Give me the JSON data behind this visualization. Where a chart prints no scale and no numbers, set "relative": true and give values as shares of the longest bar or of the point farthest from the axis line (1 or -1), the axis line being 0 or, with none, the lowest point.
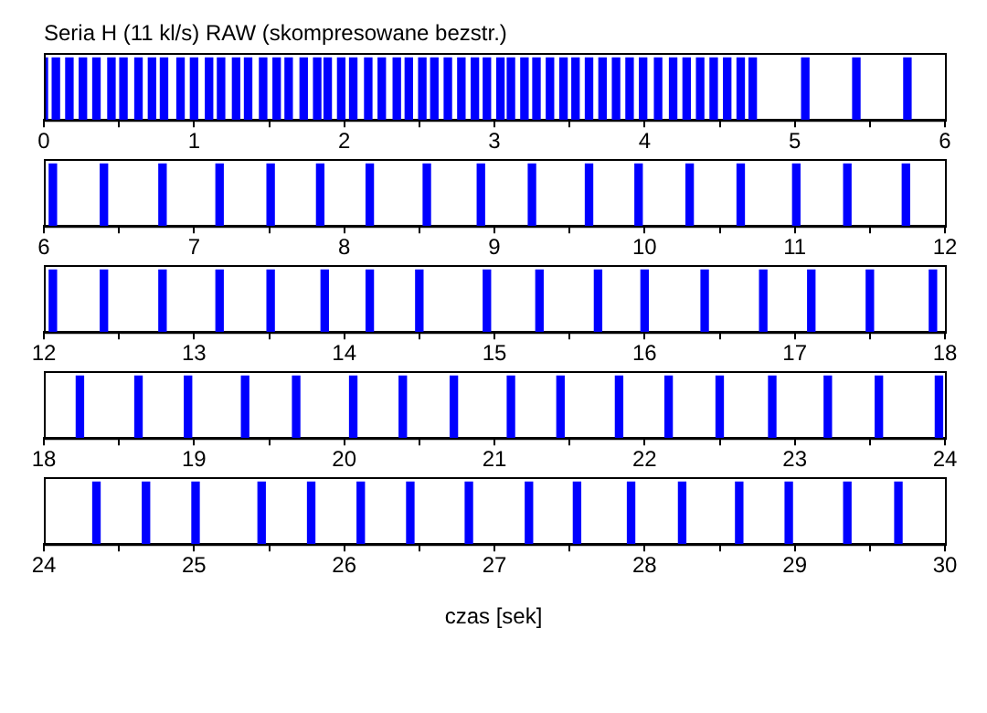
{
  "chart_data": [
    {
      "type": "bar",
      "title": "Seria H (11 kl/s) RAW (skompresowane bezstr.)",
      "relative": true,
      "color": "#0000ff",
      "xlim": [
        0,
        6
      ],
      "xticks": [
        0,
        {
          "value": 0.5,
          "label": null
        },
        1,
        {
          "value": 1.5,
          "label": null
        },
        2,
        {
          "value": 2.5,
          "label": null
        },
        3,
        {
          "value": 3.5,
          "label": null
        },
        4,
        {
          "value": 4.5,
          "label": null
        },
        5,
        {
          "value": 5.5,
          "label": null
        },
        6
      ],
      "x": [
        0.0,
        0.08,
        0.17,
        0.26,
        0.35,
        0.45,
        0.53,
        0.63,
        0.72,
        0.8,
        0.91,
        1.0,
        1.1,
        1.18,
        1.28,
        1.36,
        1.46,
        1.55,
        1.63,
        1.73,
        1.82,
        1.89,
        1.98,
        2.06,
        2.16,
        2.25,
        2.35,
        2.43,
        2.52,
        2.6,
        2.69,
        2.78,
        2.87,
        2.95,
        3.04,
        3.11,
        3.2,
        3.28,
        3.37,
        3.46,
        3.54,
        3.63,
        3.72,
        3.81,
        3.9,
        3.99,
        4.09,
        4.19,
        4.28,
        4.37,
        4.46,
        4.55,
        4.64,
        4.72,
        5.07,
        5.41,
        5.75
      ],
      "values": [
        1,
        1,
        1,
        1,
        1,
        1,
        1,
        1,
        1,
        1,
        1,
        1,
        1,
        1,
        1,
        1,
        1,
        1,
        1,
        1,
        1,
        1,
        1,
        1,
        1,
        1,
        1,
        1,
        1,
        1,
        1,
        1,
        1,
        1,
        1,
        1,
        1,
        1,
        1,
        1,
        1,
        1,
        1,
        1,
        1,
        1,
        1,
        1,
        1,
        1,
        1,
        1,
        1,
        1,
        1,
        1,
        1
      ]
    },
    {
      "type": "bar",
      "relative": true,
      "color": "#0000ff",
      "xlim": [
        6,
        12
      ],
      "xticks": [
        6,
        {
          "value": 6.5,
          "label": null
        },
        7,
        {
          "value": 7.5,
          "label": null
        },
        8,
        {
          "value": 8.5,
          "label": null
        },
        9,
        {
          "value": 9.5,
          "label": null
        },
        10,
        {
          "value": 10.5,
          "label": null
        },
        11,
        {
          "value": 11.5,
          "label": null
        },
        12
      ],
      "x": [
        6.06,
        6.4,
        6.79,
        7.17,
        7.51,
        7.84,
        8.17,
        8.55,
        8.91,
        9.25,
        9.63,
        9.96,
        10.3,
        10.64,
        11.01,
        11.35,
        11.74
      ],
      "values": [
        1,
        1,
        1,
        1,
        1,
        1,
        1,
        1,
        1,
        1,
        1,
        1,
        1,
        1,
        1,
        1,
        1
      ]
    },
    {
      "type": "bar",
      "relative": true,
      "color": "#0000ff",
      "xlim": [
        12,
        18
      ],
      "xticks": [
        12,
        {
          "value": 12.5,
          "label": null
        },
        13,
        {
          "value": 13.5,
          "label": null
        },
        14,
        {
          "value": 14.5,
          "label": null
        },
        15,
        {
          "value": 15.5,
          "label": null
        },
        16,
        {
          "value": 16.5,
          "label": null
        },
        17,
        {
          "value": 17.5,
          "label": null
        },
        18
      ],
      "x": [
        12.06,
        12.4,
        12.79,
        13.17,
        13.51,
        13.87,
        14.17,
        14.5,
        14.95,
        15.3,
        15.69,
        16.0,
        16.4,
        16.79,
        17.11,
        17.5,
        17.92
      ],
      "values": [
        1,
        1,
        1,
        1,
        1,
        1,
        1,
        1,
        1,
        1,
        1,
        1,
        1,
        1,
        1,
        1,
        1
      ]
    },
    {
      "type": "bar",
      "relative": true,
      "color": "#0000ff",
      "xlim": [
        18,
        24
      ],
      "xticks": [
        18,
        {
          "value": 18.5,
          "label": null
        },
        19,
        {
          "value": 19.5,
          "label": null
        },
        20,
        {
          "value": 20.5,
          "label": null
        },
        21,
        {
          "value": 21.5,
          "label": null
        },
        22,
        {
          "value": 22.5,
          "label": null
        },
        23,
        {
          "value": 23.5,
          "label": null
        },
        24
      ],
      "x": [
        18.24,
        18.63,
        18.96,
        19.34,
        19.68,
        20.06,
        20.39,
        20.73,
        21.11,
        21.44,
        21.83,
        22.16,
        22.5,
        22.85,
        23.22,
        23.56,
        23.96
      ],
      "values": [
        1,
        1,
        1,
        1,
        1,
        1,
        1,
        1,
        1,
        1,
        1,
        1,
        1,
        1,
        1,
        1,
        1
      ]
    },
    {
      "type": "bar",
      "xlabel": "czas [sek]",
      "relative": true,
      "color": "#0000ff",
      "xlim": [
        24,
        30
      ],
      "xticks": [
        24,
        {
          "value": 24.5,
          "label": null
        },
        25,
        {
          "value": 25.5,
          "label": null
        },
        26,
        {
          "value": 26.5,
          "label": null
        },
        27,
        {
          "value": 27.5,
          "label": null
        },
        28,
        {
          "value": 28.5,
          "label": null
        },
        29,
        {
          "value": 29.5,
          "label": null
        },
        30
      ],
      "x": [
        24.35,
        24.68,
        25.01,
        25.45,
        25.78,
        26.11,
        26.44,
        26.83,
        27.23,
        27.55,
        27.91,
        28.25,
        28.63,
        28.96,
        29.35,
        29.69
      ],
      "values": [
        1,
        1,
        1,
        1,
        1,
        1,
        1,
        1,
        1,
        1,
        1,
        1,
        1,
        1,
        1,
        1
      ]
    }
  ]
}
